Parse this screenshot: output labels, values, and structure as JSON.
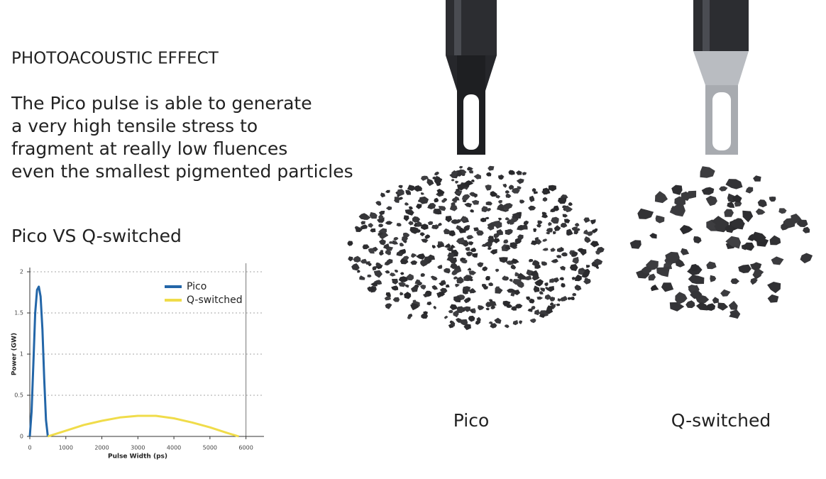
{
  "title": "PHOTOACOUSTIC EFFECT",
  "body_lines": [
    "The Pico pulse is able to generate",
    "a very high tensile stress to",
    "fragment at really low fluences",
    "even the smallest pigmented particles"
  ],
  "subtitle": "Pico VS Q-switched",
  "chart_data": {
    "type": "line",
    "x_label": "Pulse Width (ps)",
    "y_label": "Power (GW)",
    "xlim": [
      0,
      6500
    ],
    "ylim": [
      0,
      2
    ],
    "xticks": [
      0,
      1000,
      2000,
      3000,
      4000,
      5000,
      6000
    ],
    "yticks": [
      0,
      0.5,
      1,
      1.5,
      2
    ],
    "grid": true,
    "legend": "upper right",
    "series": [
      {
        "name": "Pico",
        "color": "#2366a8",
        "x": [
          0,
          50,
          100,
          150,
          200,
          250,
          300,
          350,
          400,
          450,
          500
        ],
        "values": [
          0,
          0.3,
          0.9,
          1.5,
          1.78,
          1.82,
          1.7,
          1.3,
          0.7,
          0.2,
          0
        ]
      },
      {
        "name": "Q-switched",
        "color": "#f0dc4a",
        "x": [
          500,
          1000,
          1500,
          2000,
          2500,
          3000,
          3500,
          4000,
          4500,
          5000,
          5500,
          5800
        ],
        "values": [
          0,
          0.07,
          0.14,
          0.19,
          0.23,
          0.25,
          0.25,
          0.22,
          0.17,
          0.11,
          0.04,
          0
        ]
      }
    ]
  },
  "illustration_labels": [
    "Pico",
    "Q-switched"
  ]
}
